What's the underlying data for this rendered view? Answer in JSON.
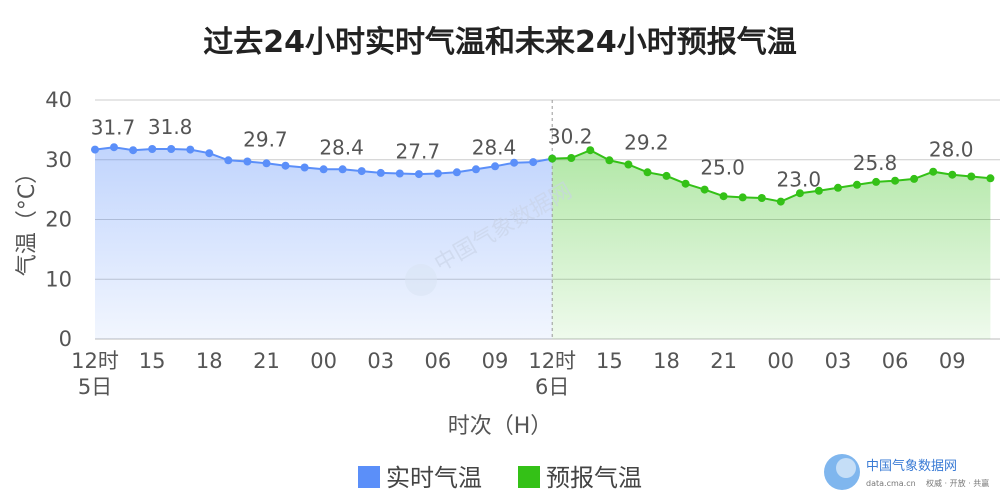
{
  "chart_data": {
    "type": "line",
    "title": "过去24小时实时气温和未来24小时预报气温",
    "xlabel": "时次（H）",
    "ylabel": "气温（°C）",
    "ylim": [
      0,
      40
    ],
    "yticks": [
      "0",
      "10",
      "20",
      "30",
      "40"
    ],
    "grid": true,
    "legend_position": "bottom",
    "xticks": [
      {
        "hour": 0,
        "label": "12时",
        "sub": "5日"
      },
      {
        "hour": 3,
        "label": "15",
        "sub": ""
      },
      {
        "hour": 6,
        "label": "18",
        "sub": ""
      },
      {
        "hour": 9,
        "label": "21",
        "sub": ""
      },
      {
        "hour": 12,
        "label": "00",
        "sub": ""
      },
      {
        "hour": 15,
        "label": "03",
        "sub": ""
      },
      {
        "hour": 18,
        "label": "06",
        "sub": ""
      },
      {
        "hour": 21,
        "label": "09",
        "sub": ""
      },
      {
        "hour": 24,
        "label": "12时",
        "sub": "6日"
      },
      {
        "hour": 27,
        "label": "15",
        "sub": ""
      },
      {
        "hour": 30,
        "label": "18",
        "sub": ""
      },
      {
        "hour": 33,
        "label": "21",
        "sub": ""
      },
      {
        "hour": 36,
        "label": "00",
        "sub": ""
      },
      {
        "hour": 39,
        "label": "03",
        "sub": ""
      },
      {
        "hour": 42,
        "label": "06",
        "sub": ""
      },
      {
        "hour": 45,
        "label": "09",
        "sub": ""
      }
    ],
    "series": [
      {
        "name": "实时气温",
        "color": "#5b8ff9",
        "hours": [
          0,
          1,
          2,
          3,
          4,
          5,
          6,
          7,
          8,
          9,
          10,
          11,
          12,
          13,
          14,
          15,
          16,
          17,
          18,
          19,
          20,
          21,
          22,
          23,
          24
        ],
        "values": [
          31.7,
          32.1,
          31.6,
          31.8,
          31.8,
          31.7,
          31.1,
          29.9,
          29.7,
          29.4,
          29.0,
          28.7,
          28.4,
          28.4,
          28.1,
          27.8,
          27.7,
          27.6,
          27.7,
          27.9,
          28.4,
          28.9,
          29.5,
          29.6,
          30.2
        ]
      },
      {
        "name": "预报气温",
        "color": "#34c117",
        "hours": [
          24,
          25,
          26,
          27,
          28,
          29,
          30,
          31,
          32,
          33,
          34,
          35,
          36,
          37,
          38,
          39,
          40,
          41,
          42,
          43,
          44,
          45,
          46,
          47
        ],
        "values": [
          30.2,
          30.3,
          31.6,
          29.9,
          29.2,
          27.9,
          27.3,
          26.0,
          25.0,
          23.9,
          23.7,
          23.6,
          23.0,
          24.4,
          24.8,
          25.3,
          25.8,
          26.3,
          26.5,
          26.8,
          28.0,
          27.5,
          27.2,
          26.9
        ]
      }
    ],
    "data_labels": [
      {
        "series": 0,
        "hour": 0,
        "text": "31.7"
      },
      {
        "series": 0,
        "hour": 3,
        "text": "31.8"
      },
      {
        "series": 0,
        "hour": 8,
        "text": "29.7"
      },
      {
        "series": 0,
        "hour": 12,
        "text": "28.4"
      },
      {
        "series": 0,
        "hour": 16,
        "text": "27.7"
      },
      {
        "series": 0,
        "hour": 20,
        "text": "28.4"
      },
      {
        "series": 1,
        "hour": 24,
        "text": "30.2"
      },
      {
        "series": 1,
        "hour": 28,
        "text": "29.2"
      },
      {
        "series": 1,
        "hour": 32,
        "text": "25.0"
      },
      {
        "series": 1,
        "hour": 36,
        "text": "23.0"
      },
      {
        "series": 1,
        "hour": 40,
        "text": "25.8"
      },
      {
        "series": 1,
        "hour": 44,
        "text": "28.0"
      }
    ]
  },
  "watermark": "中国气象数据网",
  "logo": {
    "name": "中国气象数据网",
    "url": "data.cma.cn",
    "slogan": "权威 · 开放 · 共赢"
  }
}
